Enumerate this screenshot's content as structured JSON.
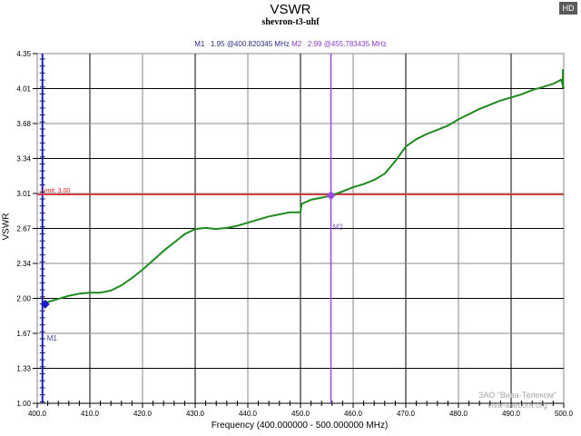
{
  "header": {
    "title": "VSWR",
    "subtitle": "shevron-t3-uhf",
    "badge": "HD"
  },
  "markers": {
    "m1": {
      "label": "M1",
      "value": "1.95",
      "freq": "@400.820345 MHz",
      "color": "#1e1ecc"
    },
    "m2": {
      "label": "M2",
      "value": "2.99",
      "freq": "@455.783435 MHz",
      "color": "#9b4ae0"
    }
  },
  "limit": {
    "label": "Limit: 3.00",
    "value": 3.0,
    "color": "#e02020"
  },
  "axes": {
    "xlabel": "Frequency (400.000000 - 500.000000 MHz)",
    "ylabel": "VSWR",
    "x_ticks": [
      "400.0",
      "410.0",
      "420.0",
      "430.0",
      "440.0",
      "450.0",
      "460.0",
      "470.0",
      "480.0",
      "490.0",
      "500.0"
    ],
    "y_ticks": [
      "4.35",
      "4.01",
      "3.68",
      "3.34",
      "3.01",
      "2.67",
      "2.34",
      "2.00",
      "1.67",
      "1.33",
      "1.00"
    ]
  },
  "watermark": {
    "line1": "ЗАО \"Вива-Телеком\"",
    "line2": "viva-telecom.org"
  },
  "colors": {
    "trace": "#1e8a1e",
    "grid_dark": "#000000",
    "grid_gray": "#8a8a8a"
  },
  "chart_data": {
    "type": "line",
    "title": "VSWR",
    "subtitle": "shevron-t3-uhf",
    "xlabel": "Frequency (400.000000 - 500.000000 MHz)",
    "ylabel": "VSWR",
    "xlim": [
      400,
      500
    ],
    "ylim": [
      1.0,
      4.35
    ],
    "grid": true,
    "series": [
      {
        "name": "VSWR",
        "x": [
          400.8,
          402,
          404,
          406,
          408,
          410,
          412,
          414,
          416,
          418,
          420,
          422,
          424,
          426,
          428,
          430,
          432,
          434,
          436,
          438,
          440,
          442,
          444,
          446,
          448,
          450,
          450.2,
          452,
          454,
          455.8,
          458,
          460,
          462,
          464,
          466,
          468,
          470,
          472,
          474,
          476,
          478,
          480,
          482,
          484,
          486,
          488,
          490,
          492,
          494,
          496,
          498,
          499.5,
          500
        ],
        "y": [
          1.95,
          1.97,
          2.0,
          2.03,
          2.05,
          2.06,
          2.06,
          2.08,
          2.13,
          2.2,
          2.28,
          2.37,
          2.46,
          2.54,
          2.62,
          2.67,
          2.68,
          2.67,
          2.68,
          2.7,
          2.73,
          2.76,
          2.79,
          2.81,
          2.83,
          2.83,
          2.91,
          2.95,
          2.97,
          2.99,
          3.03,
          3.07,
          3.1,
          3.14,
          3.2,
          3.32,
          3.46,
          3.53,
          3.58,
          3.62,
          3.66,
          3.72,
          3.77,
          3.82,
          3.86,
          3.9,
          3.93,
          3.96,
          4.0,
          4.03,
          4.06,
          4.1,
          4.02
        ]
      }
    ],
    "annotations": [
      {
        "type": "hline",
        "y": 3.0,
        "label": "Limit: 3.00",
        "color": "#e02020"
      },
      {
        "type": "marker",
        "label": "M1",
        "x": 400.820345,
        "y": 1.95
      },
      {
        "type": "marker",
        "label": "M2",
        "x": 455.783435,
        "y": 2.99
      }
    ]
  }
}
